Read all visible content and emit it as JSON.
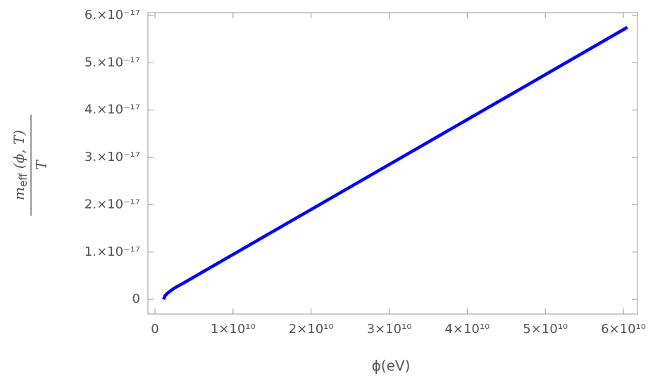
{
  "chart_data": {
    "type": "line",
    "x_label": "ϕ(eV)",
    "y_label": {
      "numerator": "m",
      "numerator_subscript": "eff",
      "numerator_args": " (ϕ, T)",
      "denominator": "T"
    },
    "x": [
      1100000000.0,
      1300000000.0,
      1600000000.0,
      2500000000.0,
      3600000000.0,
      10000000000.0,
      20000000000.0,
      30000000000.0,
      40000000000.0,
      50000000000.0,
      60500000000.0
    ],
    "series": [
      {
        "color": "#0000ff",
        "values": [
          0,
          8e-19,
          1.3e-18,
          2.4e-18,
          3.4e-18,
          9.5e-18,
          1.9e-17,
          2.85e-17,
          3.8e-17,
          4.75e-17,
          5.75e-17
        ]
      }
    ],
    "xlim": [
      -900000000.0,
      61800000000.0
    ],
    "ylim": [
      -3.1e-18,
      6.06e-17
    ],
    "xticks": [
      0,
      {
        "value": 10000000000.0,
        "label": "1×10¹⁰"
      },
      {
        "value": 20000000000.0,
        "label": "2×10¹⁰"
      },
      {
        "value": 30000000000.0,
        "label": "3×10¹⁰"
      },
      {
        "value": 40000000000.0,
        "label": "4×10¹⁰"
      },
      {
        "value": 50000000000.0,
        "label": "5×10¹⁰"
      },
      {
        "value": 60000000000.0,
        "label": "6×10¹⁰"
      }
    ],
    "yticks": [
      0,
      {
        "value": 1e-17,
        "label": "1.×10⁻¹⁷"
      },
      {
        "value": 2e-17,
        "label": "2.×10⁻¹⁷"
      },
      {
        "value": 3e-17,
        "label": "3.×10⁻¹⁷"
      },
      {
        "value": 4e-17,
        "label": "4.×10⁻¹⁷"
      },
      {
        "value": 5e-17,
        "label": "5.×10⁻¹⁷"
      },
      {
        "value": 6e-17,
        "label": "6.×10⁻¹⁷"
      }
    ]
  }
}
